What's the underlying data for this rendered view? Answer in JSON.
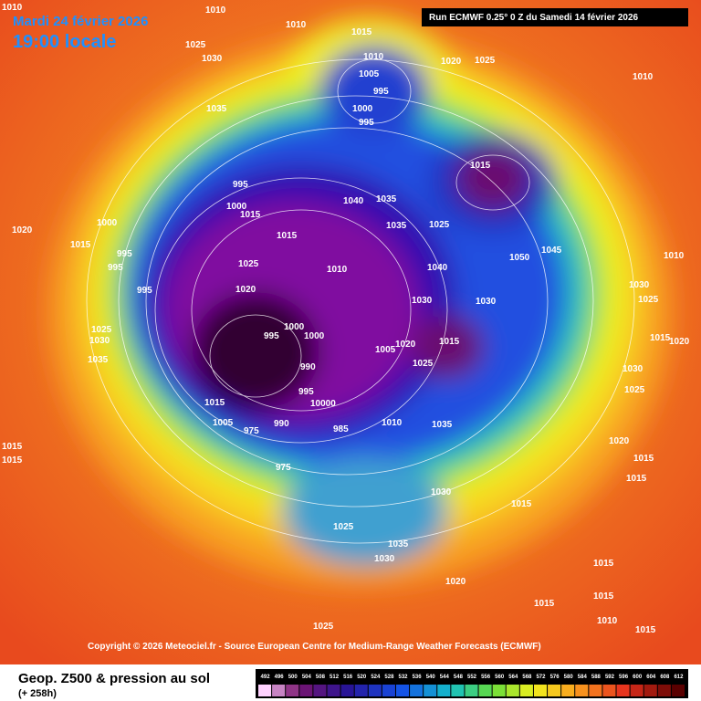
{
  "header": {
    "date": "Mardi 24 février 2026",
    "time": "19:00 locale",
    "run": "Run ECMWF 0.25° 0 Z du Samedi 14 février 2026"
  },
  "copyright": "Copyright © 2026 Meteociel.fr - Source European Centre for Medium-Range Weather Forecasts (ECMWF)",
  "footer": {
    "title": "Geop. Z500 & pression au sol",
    "lead": "(+ 258h)"
  },
  "legend": {
    "labels": [
      "492",
      "496",
      "500",
      "504",
      "508",
      "512",
      "516",
      "520",
      "524",
      "528",
      "532",
      "536",
      "540",
      "544",
      "548",
      "552",
      "556",
      "560",
      "564",
      "568",
      "572",
      "576",
      "580",
      "584",
      "588",
      "592",
      "596",
      "600",
      "604",
      "608",
      "612"
    ]
  },
  "pressure_labels": [
    "1010",
    "1010",
    "1025",
    "1030",
    "1035",
    "1015",
    "1010",
    "1005",
    "995",
    "1000",
    "995",
    "1020",
    "1025",
    "1010",
    "1015",
    "995",
    "1000",
    "1015",
    "1040",
    "1035",
    "1035",
    "1025",
    "1015",
    "1010",
    "1020",
    "1025",
    "1040",
    "1030",
    "1030",
    "1045",
    "1050",
    "1000",
    "995",
    "1000",
    "1005",
    "1020",
    "1015",
    "1025",
    "990",
    "995",
    "10000",
    "985",
    "975",
    "990",
    "975",
    "1005",
    "1015",
    "1010",
    "1035",
    "1030",
    "1015",
    "1025",
    "1035",
    "1030",
    "1020",
    "1025",
    "1015",
    "1000",
    "1015",
    "995",
    "995",
    "995",
    "1035",
    "1030",
    "1025",
    "1010",
    "1030",
    "1025",
    "1015",
    "1020",
    "1030",
    "1025",
    "1020",
    "1015",
    "1015",
    "1015",
    "1015",
    "1010",
    "1015",
    "1015",
    "1015",
    "1020",
    "1010"
  ]
}
